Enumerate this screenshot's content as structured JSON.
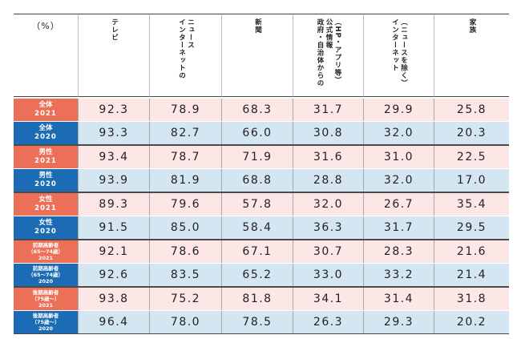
{
  "chart_data": {
    "type": "table",
    "unit": "（%）",
    "columns": [
      "テレビ",
      "インターネットのニュース",
      "新聞",
      "政府・自治体からの公式情報（HP・アプリ等）",
      "インターネット（ニュースを除く）",
      "家族"
    ],
    "column_lines": [
      [
        "テレビ"
      ],
      [
        "インターネットの",
        "ニュース"
      ],
      [
        "新聞"
      ],
      [
        "政府・自治体からの",
        "公式情報",
        "（HP・アプリ等）"
      ],
      [
        "インターネット",
        "（ニュースを除く）"
      ],
      [
        "家族"
      ]
    ],
    "rows": [
      {
        "label": "全体",
        "sub": "2021",
        "year": "2021",
        "values": [
          "92.3",
          "78.9",
          "68.3",
          "31.7",
          "29.9",
          "25.8"
        ]
      },
      {
        "label": "全体",
        "sub": "2020",
        "year": "2020",
        "values": [
          "93.3",
          "82.7",
          "66.0",
          "30.8",
          "32.0",
          "20.3"
        ]
      },
      {
        "label": "男性",
        "sub": "2021",
        "year": "2021",
        "values": [
          "93.4",
          "78.7",
          "71.9",
          "31.6",
          "31.0",
          "22.5"
        ]
      },
      {
        "label": "男性",
        "sub": "2020",
        "year": "2020",
        "values": [
          "93.9",
          "81.9",
          "68.8",
          "28.8",
          "32.0",
          "17.0"
        ]
      },
      {
        "label": "女性",
        "sub": "2021",
        "year": "2021",
        "values": [
          "89.3",
          "79.6",
          "57.8",
          "32.0",
          "26.7",
          "35.4"
        ]
      },
      {
        "label": "女性",
        "sub": "2020",
        "year": "2020",
        "values": [
          "91.5",
          "85.0",
          "58.4",
          "36.3",
          "31.7",
          "29.5"
        ]
      },
      {
        "label": "前期高齢者",
        "sub": "（65～74歳）",
        "sub2": "2021",
        "year": "2021",
        "values": [
          "92.1",
          "78.6",
          "67.1",
          "30.7",
          "28.3",
          "21.6"
        ]
      },
      {
        "label": "前期高齢者",
        "sub": "（65～74歳）",
        "sub2": "2020",
        "year": "2020",
        "values": [
          "92.6",
          "83.5",
          "65.2",
          "33.0",
          "33.2",
          "21.4"
        ]
      },
      {
        "label": "後期高齢者",
        "sub": "（75歳～）",
        "sub2": "2021",
        "year": "2021",
        "values": [
          "93.8",
          "75.2",
          "81.8",
          "34.1",
          "31.4",
          "31.8"
        ]
      },
      {
        "label": "後期高齢者",
        "sub": "（75歳～）",
        "sub2": "2020",
        "year": "2020",
        "values": [
          "96.4",
          "78.0",
          "78.5",
          "26.3",
          "29.3",
          "20.2"
        ]
      }
    ],
    "colors": {
      "label_2021": "#ec6f58",
      "label_2020": "#1b6cb5",
      "cell_2021": "#fce6e6",
      "cell_2020": "#d5e6f3"
    }
  }
}
